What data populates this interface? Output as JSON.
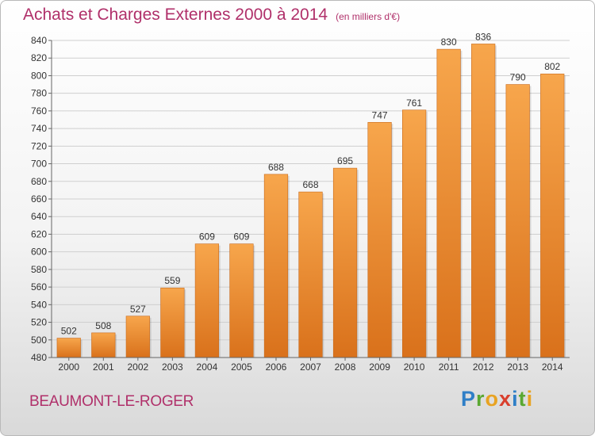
{
  "title": "Achats et Charges Externes 2000 à 2014",
  "unit_note": "(en milliers d'€)",
  "commune": "BEAUMONT-LE-ROGER",
  "logo": {
    "text": "Proxiti",
    "letters": [
      {
        "ch": "P",
        "color": "#2f7fc7"
      },
      {
        "ch": "r",
        "color": "#5aa832"
      },
      {
        "ch": "o",
        "color": "#e8a322"
      },
      {
        "ch": "x",
        "color": "#d93f2d"
      },
      {
        "ch": "i",
        "color": "#2f7fc7"
      },
      {
        "ch": "t",
        "color": "#5aa832"
      },
      {
        "ch": "i",
        "color": "#e8a322"
      }
    ]
  },
  "colors": {
    "bar_top": "#f7a64c",
    "bar_bottom": "#d9711b",
    "title": "#b0306a"
  },
  "chart_data": {
    "type": "bar",
    "categories": [
      "2000",
      "2001",
      "2002",
      "2003",
      "2004",
      "2005",
      "2006",
      "2007",
      "2008",
      "2009",
      "2010",
      "2011",
      "2012",
      "2013",
      "2014"
    ],
    "values": [
      502,
      508,
      527,
      559,
      609,
      609,
      688,
      668,
      695,
      747,
      761,
      830,
      836,
      790,
      802
    ],
    "ylim": [
      480,
      840
    ],
    "yticks": [
      480,
      500,
      520,
      540,
      560,
      580,
      600,
      620,
      640,
      660,
      680,
      700,
      720,
      740,
      760,
      780,
      800,
      820,
      840
    ],
    "grid": true,
    "legend": "none"
  }
}
